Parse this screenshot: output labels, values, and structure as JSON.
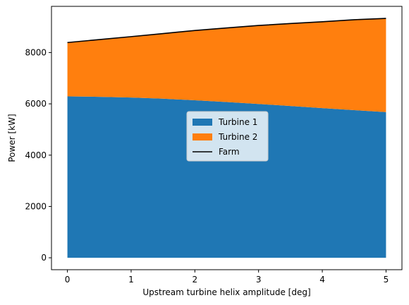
{
  "chart_data": {
    "type": "area",
    "title": "",
    "xlabel": "Upstream turbine helix amplitude [deg]",
    "ylabel": "Power [kW]",
    "xlim": [
      -0.25,
      5.25
    ],
    "ylim": [
      -465,
      9800
    ],
    "xticks": [
      "0",
      "1",
      "2",
      "3",
      "4",
      "5"
    ],
    "yticks": [
      "0",
      "2000",
      "4000",
      "6000",
      "8000"
    ],
    "grid": false,
    "legend_position": "center",
    "x": [
      0,
      0.5,
      1,
      1.5,
      2,
      2.5,
      3,
      3.5,
      4,
      4.5,
      5
    ],
    "series": [
      {
        "name": "Turbine 1",
        "kind": "area",
        "color": "#1f77b4",
        "values": [
          6290,
          6275,
          6245,
          6200,
          6140,
          6070,
          5995,
          5915,
          5835,
          5755,
          5680
        ]
      },
      {
        "name": "Turbine 2",
        "kind": "area",
        "color": "#ff7f0e",
        "values": [
          2100,
          2230,
          2375,
          2540,
          2720,
          2890,
          3060,
          3215,
          3365,
          3525,
          3650
        ]
      },
      {
        "name": "Farm",
        "kind": "line",
        "color": "#000000",
        "values": [
          8390,
          8505,
          8620,
          8740,
          8860,
          8960,
          9055,
          9130,
          9200,
          9280,
          9330
        ]
      }
    ]
  }
}
